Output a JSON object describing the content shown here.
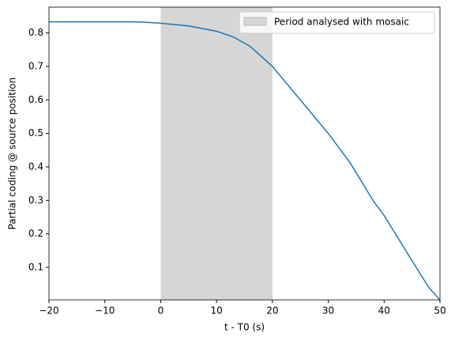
{
  "chart_data": {
    "type": "line",
    "xlabel": "t - T0 (s)",
    "ylabel": "Partial coding @ source position",
    "x": [
      -20,
      -15,
      -10,
      -5,
      -3,
      0,
      5,
      10,
      13,
      16,
      20,
      25,
      30,
      34,
      38,
      40,
      45,
      48,
      50
    ],
    "series": [
      {
        "name": null,
        "color": "#1f77b4",
        "values": [
          0.833,
          0.833,
          0.833,
          0.833,
          0.832,
          0.829,
          0.821,
          0.805,
          0.788,
          0.76,
          0.7,
          0.6,
          0.5,
          0.41,
          0.3,
          0.255,
          0.12,
          0.04,
          0.003
        ]
      }
    ],
    "span": [
      0,
      20
    ],
    "span_color": "#d6d6d6",
    "span_label": "Period analysed with mosaic",
    "xlim": [
      -20,
      50
    ],
    "xticks": [
      {
        "value": -20,
        "label": "−20"
      },
      {
        "value": -10,
        "label": "−10"
      },
      0,
      10,
      20,
      30,
      40,
      50
    ],
    "ylim": [
      0.003,
      0.877
    ],
    "yticks": [
      0.1,
      0.2,
      0.3,
      0.4,
      0.5,
      0.6,
      0.7,
      0.8
    ],
    "legend": "upper right"
  }
}
